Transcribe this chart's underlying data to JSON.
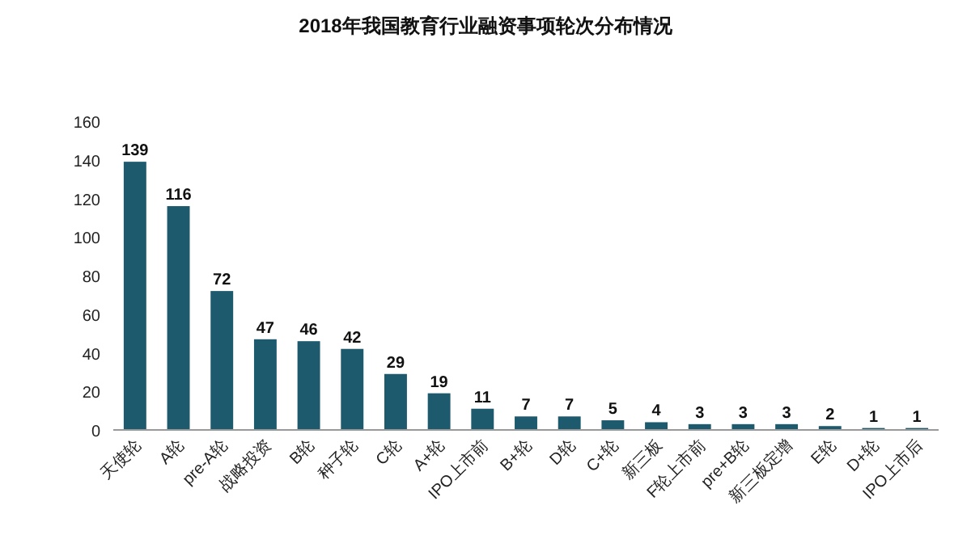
{
  "chart_data": {
    "type": "bar",
    "title": "2018年我国教育行业融资事项轮次分布情况",
    "categories": [
      "天使轮",
      "A轮",
      "pre-A轮",
      "战略投资",
      "B轮",
      "种子轮",
      "C轮",
      "A+轮",
      "IPO上市前",
      "B+轮",
      "D轮",
      "C+轮",
      "新三板",
      "F轮上市前",
      "pre+B轮",
      "新三板定增",
      "E轮",
      "D+轮",
      "IPO上市后"
    ],
    "values": [
      139,
      116,
      72,
      47,
      46,
      42,
      29,
      19,
      11,
      7,
      7,
      5,
      4,
      3,
      3,
      3,
      2,
      1,
      1
    ],
    "color": "#1d5a6e",
    "ylim": [
      0,
      160
    ],
    "yticks": [
      0,
      20,
      40,
      60,
      80,
      100,
      120,
      140,
      160
    ],
    "data_labels": true,
    "grid": false
  }
}
